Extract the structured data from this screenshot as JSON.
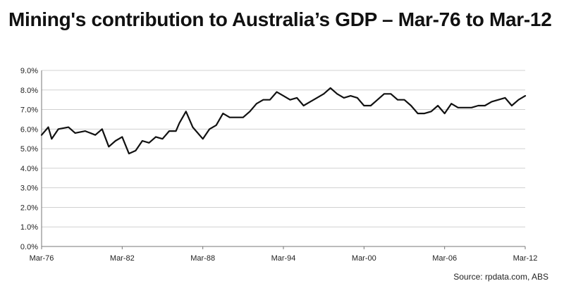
{
  "chart_data": {
    "type": "line",
    "title": "Mining's contribution to Australia’s GDP – Mar-76 to Mar-12",
    "source": "Source: rpdata.com, ABS",
    "xlabel": "",
    "ylabel": "",
    "grid": true,
    "legend": "none",
    "line_color": "#111111",
    "x_ticks": [
      "Mar-76",
      "Mar-82",
      "Mar-88",
      "Mar-94",
      "Mar-00",
      "Mar-06",
      "Mar-12"
    ],
    "y_ticks": [
      "0.0%",
      "1.0%",
      "2.0%",
      "3.0%",
      "4.0%",
      "5.0%",
      "6.0%",
      "7.0%",
      "8.0%",
      "9.0%"
    ],
    "xlim": [
      "Mar-76",
      "Mar-12"
    ],
    "ylim": [
      0,
      9
    ],
    "series": [
      {
        "values": [
          [
            "Mar-76",
            5.7
          ],
          [
            "Sep-76",
            6.1
          ],
          [
            "Dec-76",
            5.5
          ],
          [
            "Jun-77",
            6.0
          ],
          [
            "Mar-78",
            6.1
          ],
          [
            "Sep-78",
            5.8
          ],
          [
            "Jun-79",
            5.9
          ],
          [
            "Mar-80",
            5.7
          ],
          [
            "Sep-80",
            6.0
          ],
          [
            "Mar-81",
            5.1
          ],
          [
            "Sep-81",
            5.4
          ],
          [
            "Mar-82",
            5.6
          ],
          [
            "Sep-82",
            4.75
          ],
          [
            "Mar-83",
            4.9
          ],
          [
            "Sep-83",
            5.4
          ],
          [
            "Mar-84",
            5.3
          ],
          [
            "Sep-84",
            5.6
          ],
          [
            "Mar-85",
            5.5
          ],
          [
            "Sep-85",
            5.9
          ],
          [
            "Mar-86",
            5.9
          ],
          [
            "Jun-86",
            6.3
          ],
          [
            "Dec-86",
            6.9
          ],
          [
            "Jun-87",
            6.1
          ],
          [
            "Mar-88",
            5.5
          ],
          [
            "Sep-88",
            6.0
          ],
          [
            "Mar-89",
            6.2
          ],
          [
            "Sep-89",
            6.8
          ],
          [
            "Mar-90",
            6.6
          ],
          [
            "Sep-90",
            6.6
          ],
          [
            "Mar-91",
            6.6
          ],
          [
            "Sep-91",
            6.9
          ],
          [
            "Mar-92",
            7.3
          ],
          [
            "Sep-92",
            7.5
          ],
          [
            "Mar-93",
            7.5
          ],
          [
            "Sep-93",
            7.9
          ],
          [
            "Mar-94",
            7.7
          ],
          [
            "Sep-94",
            7.5
          ],
          [
            "Mar-95",
            7.6
          ],
          [
            "Sep-95",
            7.2
          ],
          [
            "Mar-96",
            7.4
          ],
          [
            "Sep-96",
            7.6
          ],
          [
            "Mar-97",
            7.8
          ],
          [
            "Sep-97",
            8.1
          ],
          [
            "Mar-98",
            7.8
          ],
          [
            "Sep-98",
            7.6
          ],
          [
            "Mar-99",
            7.7
          ],
          [
            "Sep-99",
            7.6
          ],
          [
            "Mar-00",
            7.2
          ],
          [
            "Sep-00",
            7.2
          ],
          [
            "Mar-01",
            7.5
          ],
          [
            "Sep-01",
            7.8
          ],
          [
            "Mar-02",
            7.8
          ],
          [
            "Sep-02",
            7.5
          ],
          [
            "Mar-03",
            7.5
          ],
          [
            "Sep-03",
            7.2
          ],
          [
            "Mar-04",
            6.8
          ],
          [
            "Sep-04",
            6.8
          ],
          [
            "Mar-05",
            6.9
          ],
          [
            "Sep-05",
            7.2
          ],
          [
            "Mar-06",
            6.8
          ],
          [
            "Sep-06",
            7.3
          ],
          [
            "Mar-07",
            7.1
          ],
          [
            "Sep-07",
            7.1
          ],
          [
            "Mar-08",
            7.1
          ],
          [
            "Sep-08",
            7.2
          ],
          [
            "Mar-09",
            7.2
          ],
          [
            "Sep-09",
            7.4
          ],
          [
            "Mar-10",
            7.5
          ],
          [
            "Sep-10",
            7.6
          ],
          [
            "Mar-11",
            7.2
          ],
          [
            "Sep-11",
            7.5
          ],
          [
            "Mar-12",
            7.7
          ]
        ]
      }
    ]
  }
}
